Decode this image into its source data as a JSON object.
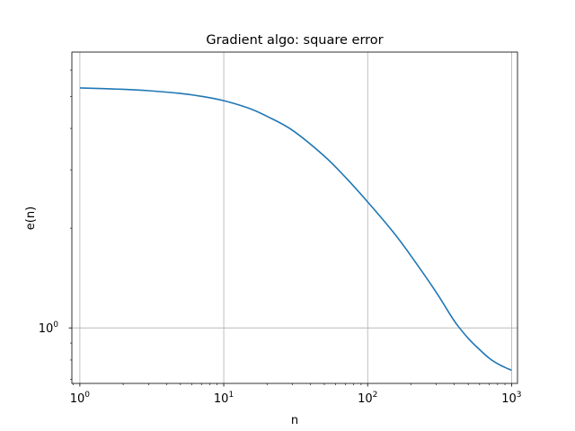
{
  "chart_data": {
    "type": "line",
    "title": "Gradient algo: square error",
    "xlabel": "n",
    "ylabel": "e(n)",
    "xscale": "log",
    "yscale": "log",
    "xlim": [
      0.88,
      1100
    ],
    "ylim": [
      0.68,
      6.8
    ],
    "grid": true,
    "x_ticks": [
      {
        "value": 1,
        "base": "10",
        "exp": "0"
      },
      {
        "value": 10,
        "base": "10",
        "exp": "1"
      },
      {
        "value": 100,
        "base": "10",
        "exp": "2"
      },
      {
        "value": 1000,
        "base": "10",
        "exp": "3"
      }
    ],
    "y_ticks": [
      {
        "value": 1,
        "base": "10",
        "exp": "0"
      }
    ],
    "series": [
      {
        "color": "#1f77b4",
        "x": [
          1,
          2,
          3,
          5,
          7,
          10,
          15,
          20,
          30,
          50,
          70,
          100,
          150,
          200,
          300,
          400,
          500,
          600,
          700,
          800,
          900,
          1000
        ],
        "y": [
          5.3,
          5.25,
          5.2,
          5.1,
          5.0,
          4.85,
          4.6,
          4.35,
          3.95,
          3.3,
          2.85,
          2.4,
          1.95,
          1.65,
          1.28,
          1.05,
          0.93,
          0.86,
          0.81,
          0.78,
          0.76,
          0.745
        ]
      }
    ]
  }
}
